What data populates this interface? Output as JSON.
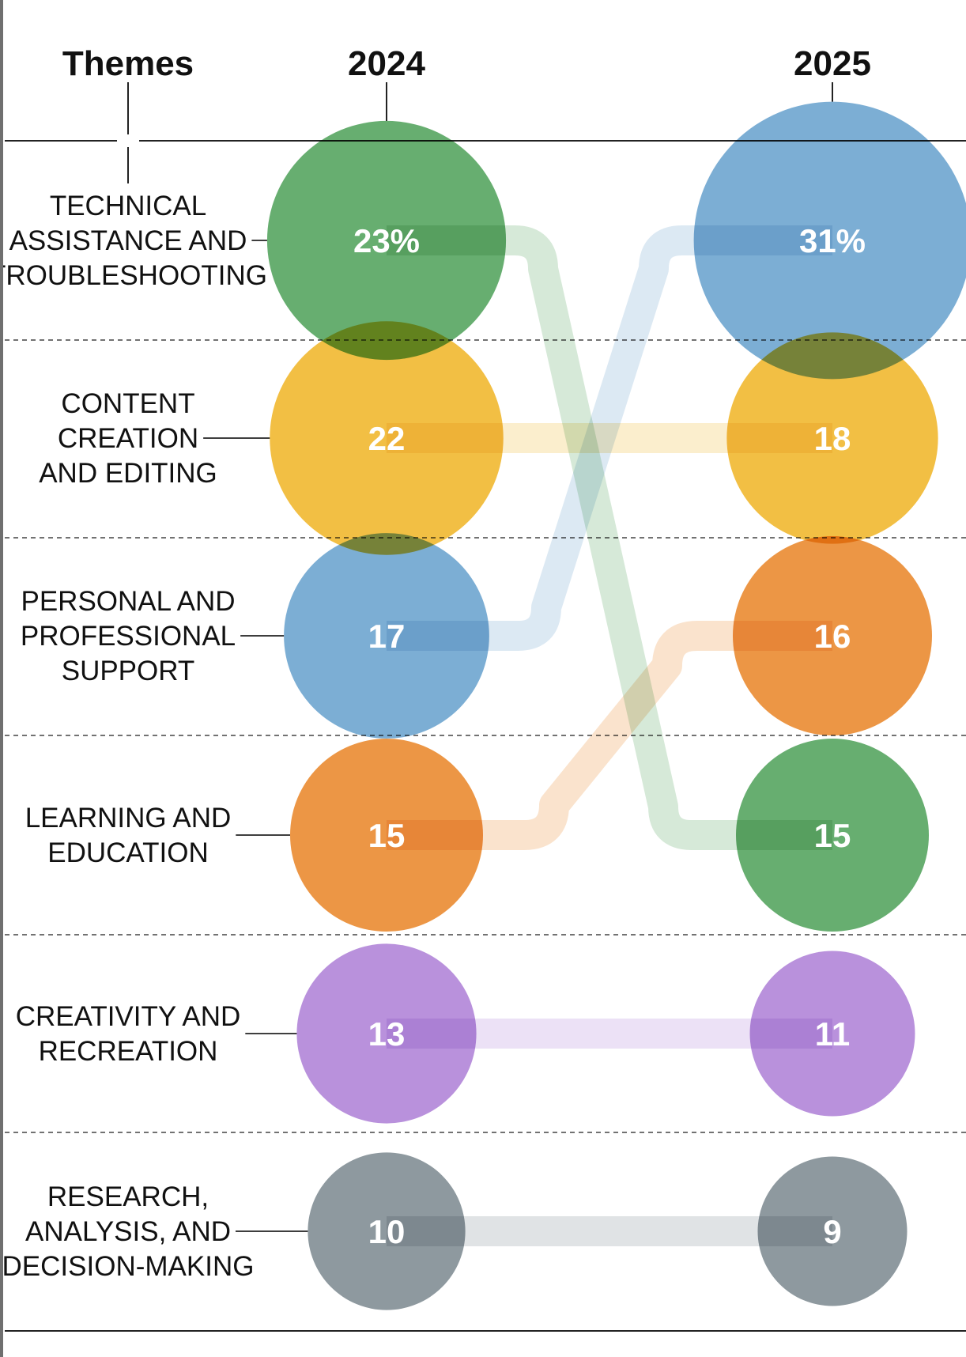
{
  "chart_data": {
    "type": "bump",
    "header": {
      "themes_label": "Themes",
      "col_left": "2024",
      "col_right": "2025"
    },
    "colors": {
      "technical": "#67ae70",
      "content": "#f2bf44",
      "personal": "#7caed4",
      "learning": "#ec9645",
      "creativity": "#b991dc",
      "research": "#8e999f"
    },
    "themes": [
      {
        "key": "technical",
        "lines": [
          "TECHNICAL",
          "ASSISTANCE AND",
          "TROUBLESHOOTING"
        ],
        "rank_2024": 1,
        "value_2024": 23,
        "label_2024": "23%",
        "rank_2025": 4,
        "value_2025": 15,
        "label_2025": "15"
      },
      {
        "key": "content",
        "lines": [
          "CONTENT",
          "CREATION",
          "AND EDITING"
        ],
        "rank_2024": 2,
        "value_2024": 22,
        "label_2024": "22",
        "rank_2025": 2,
        "value_2025": 18,
        "label_2025": "18"
      },
      {
        "key": "personal",
        "lines": [
          "PERSONAL AND",
          "PROFESSIONAL",
          "SUPPORT"
        ],
        "rank_2024": 3,
        "value_2024": 17,
        "label_2024": "17",
        "rank_2025": 1,
        "value_2025": 31,
        "label_2025": "31%"
      },
      {
        "key": "learning",
        "lines": [
          "LEARNING AND",
          "EDUCATION"
        ],
        "rank_2024": 4,
        "value_2024": 15,
        "label_2024": "15",
        "rank_2025": 3,
        "value_2025": 16,
        "label_2025": "16"
      },
      {
        "key": "creativity",
        "lines": [
          "CREATIVITY AND",
          "RECREATION"
        ],
        "rank_2024": 5,
        "value_2024": 13,
        "label_2024": "13",
        "rank_2025": 5,
        "value_2025": 11,
        "label_2025": "11"
      },
      {
        "key": "research",
        "lines": [
          "RESEARCH,",
          "ANALYSIS, AND",
          "DECISION-MAKING"
        ],
        "rank_2024": 6,
        "value_2024": 10,
        "label_2024": "10",
        "rank_2025": 6,
        "value_2025": 9,
        "label_2025": "9"
      }
    ]
  }
}
